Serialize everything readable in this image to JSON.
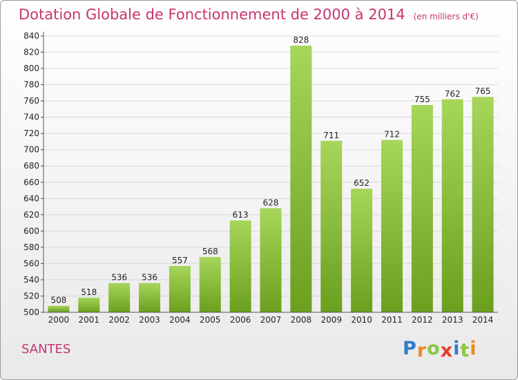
{
  "header": {
    "title": "Dotation Globale de Fonctionnement de 2000 à 2014",
    "unit": "(en milliers d'€)"
  },
  "footer": {
    "commune": "SANTES",
    "logo_letters": [
      "P",
      "r",
      "o",
      "x",
      "i",
      "t",
      "i"
    ],
    "logo_colors": [
      "#2e7fc8",
      "#ef8a1e",
      "#8cc63f",
      "#e63b2e",
      "#2e7fc8",
      "#8cc63f",
      "#ef8a1e"
    ]
  },
  "colors": {
    "bar_light": "#a6d65a",
    "bar_dark": "#6b9f1e",
    "title": "#c8346f",
    "grid": "#d8d8d8"
  },
  "chart_data": {
    "type": "bar",
    "categories": [
      "2000",
      "2001",
      "2002",
      "2003",
      "2004",
      "2005",
      "2006",
      "2007",
      "2008",
      "2009",
      "2010",
      "2011",
      "2012",
      "2013",
      "2014"
    ],
    "values": [
      508,
      518,
      536,
      536,
      557,
      568,
      613,
      628,
      828,
      711,
      652,
      712,
      755,
      762,
      765
    ],
    "title": "Dotation Globale de Fonctionnement de 2000 à 2014",
    "ylim": [
      500,
      840
    ],
    "yticks": [
      500,
      520,
      540,
      560,
      580,
      600,
      620,
      640,
      660,
      680,
      700,
      720,
      740,
      760,
      780,
      800,
      820,
      840
    ],
    "grid": true
  }
}
